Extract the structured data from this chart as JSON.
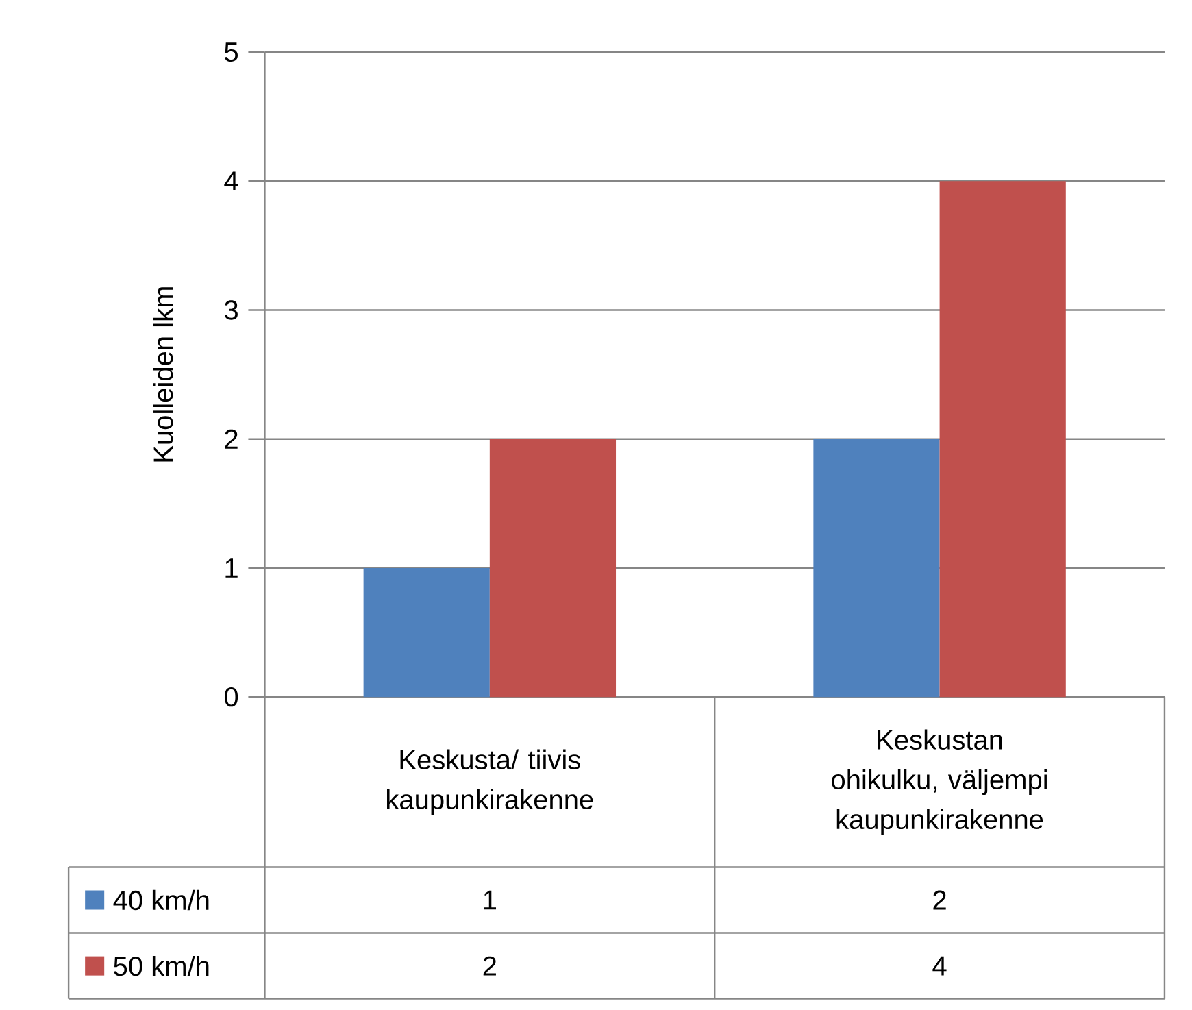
{
  "chart_data": {
    "type": "bar",
    "ylabel": "Kuolleiden lkm",
    "categories": [
      "Keskusta/ tiivis kaupunkirakenne",
      "Keskustan ohikulku, väljempi kaupunkirakenne"
    ],
    "series": [
      {
        "name": "40 km/h",
        "color": "#4f81bd",
        "values": [
          1,
          2
        ]
      },
      {
        "name": "50 km/h",
        "color": "#c0504d",
        "values": [
          2,
          4
        ]
      }
    ],
    "ylim": [
      0,
      5
    ],
    "yticks": [
      0,
      1,
      2,
      3,
      4,
      5
    ],
    "grid": "y",
    "legend": "bottom",
    "data_labels": true
  }
}
